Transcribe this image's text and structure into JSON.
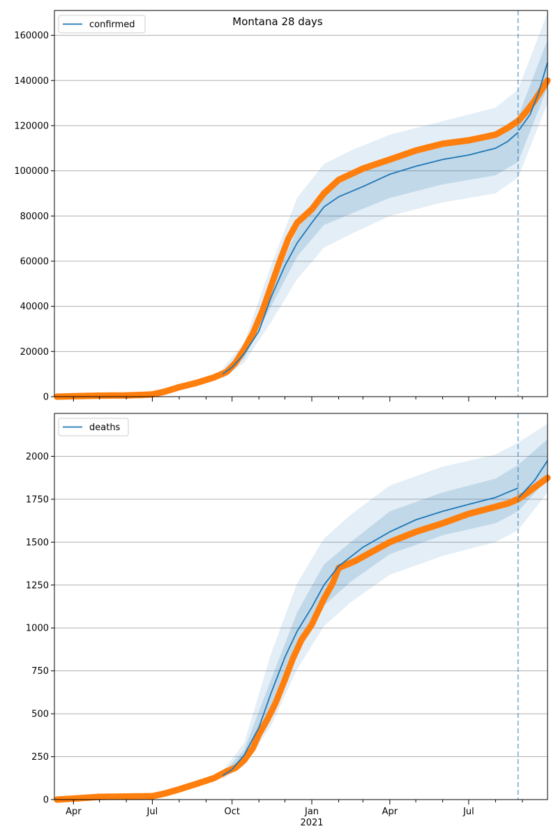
{
  "figure": {
    "title": "Montana 28 days",
    "forecast_start": "2021-08-27"
  },
  "colors": {
    "observed": "#ff7f0e",
    "model": "#1f77b4",
    "band": "#1f77b4",
    "grid": "#b0b0b0",
    "vline": "#1f77b4"
  },
  "x_axis": {
    "range": [
      "2020-03-10",
      "2021-09-30"
    ],
    "month_ticks": [
      {
        "date": "2020-04-01",
        "label": "Apr"
      },
      {
        "date": "2020-07-01",
        "label": "Jul"
      },
      {
        "date": "2020-10-01",
        "label": "Oct"
      },
      {
        "date": "2021-01-01",
        "label": "Jan"
      },
      {
        "date": "2021-04-01",
        "label": "Apr"
      },
      {
        "date": "2021-07-01",
        "label": "Jul"
      }
    ],
    "minor_ticks": [
      "2020-05-01",
      "2020-06-01",
      "2020-08-01",
      "2020-09-01",
      "2020-11-01",
      "2020-12-01",
      "2021-02-01",
      "2021-03-01",
      "2021-05-01",
      "2021-06-01",
      "2021-08-01",
      "2021-09-01"
    ],
    "year_label": "2021"
  },
  "chart_data": [
    {
      "type": "line",
      "legend": "confirmed",
      "legend_position": "top-left",
      "grid": "horizontal",
      "ylim": [
        0,
        171000
      ],
      "yticks": [
        0,
        20000,
        40000,
        60000,
        80000,
        100000,
        120000,
        140000,
        160000
      ],
      "observed": [
        [
          "2020-03-13",
          0
        ],
        [
          "2020-04-01",
          200
        ],
        [
          "2020-05-01",
          450
        ],
        [
          "2020-06-01",
          550
        ],
        [
          "2020-06-20",
          800
        ],
        [
          "2020-07-01",
          1000
        ],
        [
          "2020-07-15",
          2200
        ],
        [
          "2020-08-01",
          4200
        ],
        [
          "2020-08-20",
          6000
        ],
        [
          "2020-09-10",
          8500
        ],
        [
          "2020-09-25",
          11000
        ],
        [
          "2020-10-05",
          15000
        ],
        [
          "2020-10-15",
          21000
        ],
        [
          "2020-10-25",
          28000
        ],
        [
          "2020-11-05",
          38000
        ],
        [
          "2020-11-15",
          49000
        ],
        [
          "2020-11-25",
          60000
        ],
        [
          "2020-12-05",
          70000
        ],
        [
          "2020-12-15",
          77000
        ],
        [
          "2021-01-01",
          83000
        ],
        [
          "2021-01-15",
          90000
        ],
        [
          "2021-02-01",
          96000
        ],
        [
          "2021-03-01",
          101000
        ],
        [
          "2021-04-01",
          105000
        ],
        [
          "2021-05-01",
          109000
        ],
        [
          "2021-06-01",
          112000
        ],
        [
          "2021-07-01",
          113500
        ],
        [
          "2021-08-01",
          116000
        ],
        [
          "2021-08-15",
          119000
        ],
        [
          "2021-08-27",
          122000
        ],
        [
          "2021-09-05",
          126000
        ],
        [
          "2021-09-15",
          131000
        ],
        [
          "2021-09-25",
          137000
        ],
        [
          "2021-09-30",
          140000
        ]
      ],
      "model": [
        [
          "2020-09-20",
          10000
        ],
        [
          "2020-10-01",
          13000
        ],
        [
          "2020-10-15",
          19000
        ],
        [
          "2020-11-01",
          29000
        ],
        [
          "2020-11-15",
          44000
        ],
        [
          "2020-12-01",
          58000
        ],
        [
          "2020-12-15",
          68000
        ],
        [
          "2021-01-01",
          77000
        ],
        [
          "2021-01-15",
          84000
        ],
        [
          "2021-02-01",
          88500
        ],
        [
          "2021-03-01",
          93000
        ],
        [
          "2021-04-01",
          98500
        ],
        [
          "2021-05-01",
          102000
        ],
        [
          "2021-06-01",
          105000
        ],
        [
          "2021-07-01",
          107000
        ],
        [
          "2021-08-01",
          110000
        ],
        [
          "2021-08-15",
          113000
        ],
        [
          "2021-08-27",
          117000
        ],
        [
          "2021-08-28",
          118000
        ],
        [
          "2021-09-10",
          125000
        ],
        [
          "2021-09-20",
          135000
        ],
        [
          "2021-09-30",
          148000
        ]
      ],
      "band_inner": [
        [
          "2020-09-20",
          9000,
          11000
        ],
        [
          "2020-10-15",
          17000,
          21000
        ],
        [
          "2020-11-15",
          40000,
          48000
        ],
        [
          "2020-12-15",
          62000,
          74000
        ],
        [
          "2021-01-15",
          76000,
          92000
        ],
        [
          "2021-02-15",
          81000,
          98000
        ],
        [
          "2021-04-01",
          88000,
          106000
        ],
        [
          "2021-06-01",
          94000,
          111000
        ],
        [
          "2021-08-01",
          98000,
          117000
        ],
        [
          "2021-08-27",
          104000,
          124000
        ],
        [
          "2021-09-30",
          137000,
          158000
        ]
      ],
      "band_outer": [
        [
          "2020-09-20",
          8000,
          12500
        ],
        [
          "2020-10-15",
          15000,
          24000
        ],
        [
          "2020-11-15",
          33000,
          58000
        ],
        [
          "2020-12-15",
          52000,
          88000
        ],
        [
          "2021-01-15",
          66000,
          103000
        ],
        [
          "2021-02-15",
          72000,
          109000
        ],
        [
          "2021-04-01",
          80000,
          116000
        ],
        [
          "2021-06-01",
          86000,
          122000
        ],
        [
          "2021-08-01",
          90000,
          128000
        ],
        [
          "2021-08-27",
          97000,
          136000
        ],
        [
          "2021-09-30",
          130000,
          170000
        ]
      ]
    },
    {
      "type": "line",
      "legend": "deaths",
      "legend_position": "top-left",
      "grid": "horizontal",
      "ylim": [
        0,
        2250
      ],
      "yticks": [
        0,
        250,
        500,
        750,
        1000,
        1250,
        1500,
        1750,
        2000
      ],
      "observed": [
        [
          "2020-03-13",
          0
        ],
        [
          "2020-04-01",
          6
        ],
        [
          "2020-05-01",
          16
        ],
        [
          "2020-06-01",
          18
        ],
        [
          "2020-07-01",
          20
        ],
        [
          "2020-07-15",
          35
        ],
        [
          "2020-08-01",
          60
        ],
        [
          "2020-08-20",
          90
        ],
        [
          "2020-09-10",
          125
        ],
        [
          "2020-09-25",
          165
        ],
        [
          "2020-10-05",
          185
        ],
        [
          "2020-10-15",
          230
        ],
        [
          "2020-10-25",
          300
        ],
        [
          "2020-11-01",
          380
        ],
        [
          "2020-11-10",
          460
        ],
        [
          "2020-11-20",
          560
        ],
        [
          "2020-12-01",
          700
        ],
        [
          "2020-12-10",
          820
        ],
        [
          "2020-12-20",
          930
        ],
        [
          "2021-01-01",
          1020
        ],
        [
          "2021-01-15",
          1170
        ],
        [
          "2021-01-25",
          1260
        ],
        [
          "2021-02-01",
          1350
        ],
        [
          "2021-02-20",
          1390
        ],
        [
          "2021-03-10",
          1440
        ],
        [
          "2021-04-01",
          1500
        ],
        [
          "2021-05-01",
          1560
        ],
        [
          "2021-06-01",
          1610
        ],
        [
          "2021-07-01",
          1665
        ],
        [
          "2021-07-20",
          1690
        ],
        [
          "2021-08-15",
          1725
        ],
        [
          "2021-08-27",
          1750
        ],
        [
          "2021-09-10",
          1800
        ],
        [
          "2021-09-30",
          1875
        ]
      ],
      "model": [
        [
          "2020-09-20",
          140
        ],
        [
          "2020-10-01",
          175
        ],
        [
          "2020-10-15",
          260
        ],
        [
          "2020-11-01",
          420
        ],
        [
          "2020-11-15",
          620
        ],
        [
          "2020-12-01",
          830
        ],
        [
          "2020-12-15",
          980
        ],
        [
          "2021-01-01",
          1120
        ],
        [
          "2021-01-15",
          1250
        ],
        [
          "2021-02-01",
          1360
        ],
        [
          "2021-03-01",
          1470
        ],
        [
          "2021-04-01",
          1560
        ],
        [
          "2021-05-01",
          1630
        ],
        [
          "2021-06-01",
          1680
        ],
        [
          "2021-07-01",
          1720
        ],
        [
          "2021-08-01",
          1760
        ],
        [
          "2021-08-15",
          1790
        ],
        [
          "2021-08-27",
          1815
        ],
        [
          "2021-08-28",
          1760
        ],
        [
          "2021-09-15",
          1860
        ],
        [
          "2021-09-30",
          1975
        ]
      ],
      "band_inner": [
        [
          "2020-09-20",
          130,
          150
        ],
        [
          "2020-10-15",
          230,
          290
        ],
        [
          "2020-11-15",
          540,
          700
        ],
        [
          "2020-12-15",
          880,
          1090
        ],
        [
          "2021-01-15",
          1130,
          1370
        ],
        [
          "2021-02-15",
          1270,
          1500
        ],
        [
          "2021-04-01",
          1430,
          1680
        ],
        [
          "2021-06-01",
          1540,
          1790
        ],
        [
          "2021-08-01",
          1610,
          1870
        ],
        [
          "2021-08-27",
          1680,
          1950
        ],
        [
          "2021-09-30",
          1870,
          2100
        ]
      ],
      "band_outer": [
        [
          "2020-09-20",
          120,
          165
        ],
        [
          "2020-10-15",
          200,
          330
        ],
        [
          "2020-11-15",
          430,
          850
        ],
        [
          "2020-12-15",
          760,
          1260
        ],
        [
          "2021-01-15",
          1010,
          1520
        ],
        [
          "2021-02-15",
          1150,
          1660
        ],
        [
          "2021-04-01",
          1310,
          1830
        ],
        [
          "2021-06-01",
          1420,
          1940
        ],
        [
          "2021-08-01",
          1500,
          2010
        ],
        [
          "2021-08-27",
          1570,
          2080
        ],
        [
          "2021-09-30",
          1790,
          2190
        ]
      ]
    }
  ]
}
